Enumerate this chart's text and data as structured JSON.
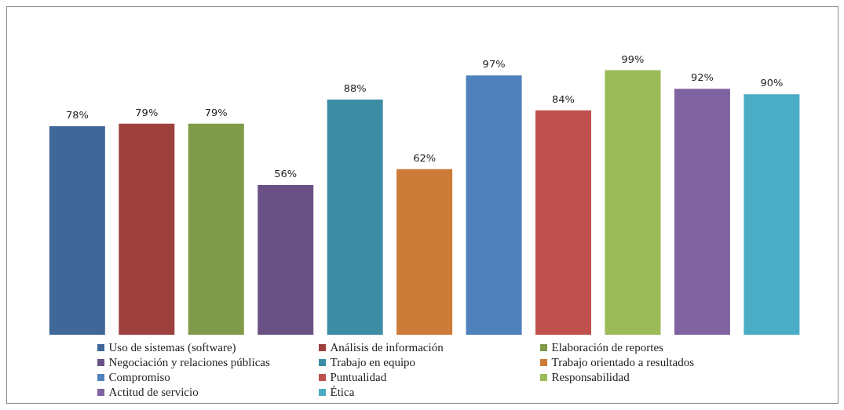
{
  "chart_data": {
    "type": "bar",
    "categories": [
      null,
      null,
      null,
      null,
      null,
      null,
      null,
      null,
      null,
      null,
      null
    ],
    "legend": "bottom",
    "stacked": true,
    "series": [
      {
        "name": "Uso de sistemas (software)",
        "color": "#3f6898",
        "values": [
          78,
          null,
          null,
          null,
          null,
          null,
          null,
          null,
          null,
          null,
          null
        ],
        "value_labels": [
          "78%",
          null,
          null,
          null,
          null,
          null,
          null,
          null,
          null,
          null,
          null
        ]
      },
      {
        "name": "Análisis de información",
        "color": "#9e413e",
        "values": [
          null,
          79,
          null,
          null,
          null,
          null,
          null,
          null,
          null,
          null,
          null
        ],
        "value_labels": [
          null,
          "79%",
          null,
          null,
          null,
          null,
          null,
          null,
          null,
          null,
          null
        ]
      },
      {
        "name": "Elaboración de reportes",
        "color": "#7f9a48",
        "values": [
          null,
          null,
          79,
          null,
          null,
          null,
          null,
          null,
          null,
          null,
          null
        ],
        "value_labels": [
          null,
          null,
          "79%",
          null,
          null,
          null,
          null,
          null,
          null,
          null,
          null
        ]
      },
      {
        "name": "Negociación y relaciones públicas",
        "color": "#695185",
        "values": [
          null,
          null,
          null,
          56,
          null,
          null,
          null,
          null,
          null,
          null,
          null
        ],
        "value_labels": [
          null,
          null,
          null,
          "56%",
          null,
          null,
          null,
          null,
          null,
          null,
          null
        ]
      },
      {
        "name": "Trabajo en equipo",
        "color": "#3c8da3",
        "values": [
          null,
          null,
          null,
          null,
          88,
          null,
          null,
          null,
          null,
          null,
          null
        ],
        "value_labels": [
          null,
          null,
          null,
          null,
          "88%",
          null,
          null,
          null,
          null,
          null,
          null
        ]
      },
      {
        "name": "Trabajo orientado a resultados",
        "color": "#cc7b38",
        "values": [
          null,
          null,
          null,
          null,
          null,
          62,
          null,
          null,
          null,
          null,
          null
        ],
        "value_labels": [
          null,
          null,
          null,
          null,
          null,
          "62%",
          null,
          null,
          null,
          null,
          null
        ]
      },
      {
        "name": "Compromiso",
        "color": "#4f81bd",
        "values": [
          null,
          null,
          null,
          null,
          null,
          null,
          97,
          null,
          null,
          null,
          null
        ],
        "value_labels": [
          null,
          null,
          null,
          null,
          null,
          null,
          "97%",
          null,
          null,
          null,
          null
        ]
      },
      {
        "name": "Puntualidad",
        "color": "#c0504d",
        "values": [
          null,
          null,
          null,
          null,
          null,
          null,
          null,
          84,
          null,
          null,
          null
        ],
        "value_labels": [
          null,
          null,
          null,
          null,
          null,
          null,
          null,
          "84%",
          null,
          null,
          null
        ]
      },
      {
        "name": "Responsabilidad",
        "color": "#9bbb59",
        "values": [
          null,
          null,
          null,
          null,
          null,
          null,
          null,
          null,
          99,
          null,
          null
        ],
        "value_labels": [
          null,
          null,
          null,
          null,
          null,
          null,
          null,
          null,
          "99%",
          null,
          null
        ]
      },
      {
        "name": "Actitud de servicio",
        "color": "#8064a2",
        "values": [
          null,
          null,
          null,
          null,
          null,
          null,
          null,
          null,
          null,
          92,
          null
        ],
        "value_labels": [
          null,
          null,
          null,
          null,
          null,
          null,
          null,
          null,
          null,
          "92%",
          null
        ]
      },
      {
        "name": "Ética",
        "color": "#4bacc6",
        "values": [
          null,
          null,
          null,
          null,
          null,
          null,
          null,
          null,
          null,
          null,
          90
        ],
        "value_labels": [
          null,
          null,
          null,
          null,
          null,
          null,
          null,
          null,
          null,
          null,
          "90%"
        ]
      }
    ]
  }
}
